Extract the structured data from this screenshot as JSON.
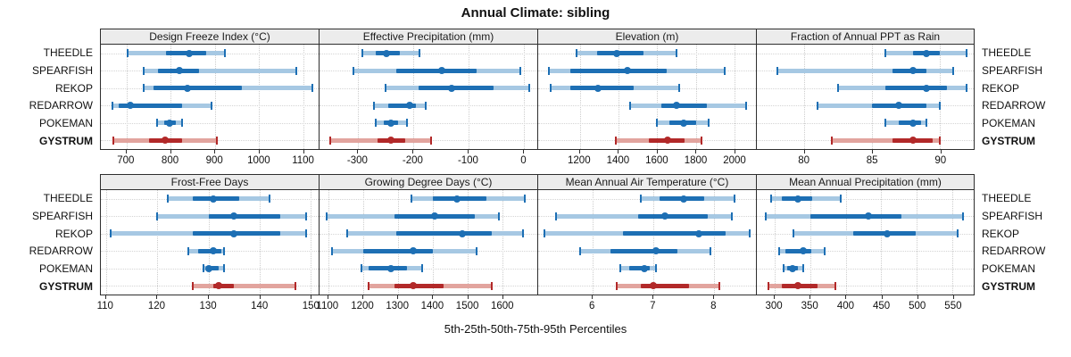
{
  "title": "Annual Climate: sibling",
  "caption": "5th-25th-50th-75th-95th Percentiles",
  "colors": {
    "series_blue": "#1d6fb4",
    "series_blue_light": "#a6c8e3",
    "highlight_red": "#b22929",
    "highlight_red_light": "#e2a49e",
    "strip_bg": "#ececec",
    "panel_border": "#2e2e2e",
    "gridline": "#cdcdcd"
  },
  "chart_data": {
    "type": "percentile-intervals",
    "percentile_levels": [
      5,
      25,
      50,
      75,
      95
    ],
    "legend_note": "rows repeated on left and right axes; GYSTRUM highlighted",
    "rows": [
      {
        "name": "THEEDLE",
        "highlight": false
      },
      {
        "name": "SPEARFISH",
        "highlight": false
      },
      {
        "name": "REKOP",
        "highlight": false
      },
      {
        "name": "REDARROW",
        "highlight": false
      },
      {
        "name": "POKEMAN",
        "highlight": false
      },
      {
        "name": "GYSTRUM",
        "highlight": true
      }
    ],
    "panels": [
      {
        "title": "Design Freeze Index (°C)",
        "xlim": [
          642,
          1135
        ],
        "ticks": [
          700,
          800,
          900,
          1000,
          1100
        ],
        "series": [
          [
            703,
            790,
            843,
            880,
            923
          ],
          [
            738,
            772,
            820,
            865,
            1085
          ],
          [
            738,
            762,
            838,
            962,
            1120
          ],
          [
            668,
            682,
            708,
            825,
            893
          ],
          [
            770,
            785,
            797,
            812,
            825
          ],
          [
            670,
            752,
            787,
            825,
            905
          ]
        ]
      },
      {
        "title": "Effective Precipitation (mm)",
        "xlim": [
          -370,
          25
        ],
        "ticks": [
          -300,
          -200,
          -100,
          0
        ],
        "series": [
          [
            -292,
            -268,
            -248,
            -225,
            -188
          ],
          [
            -308,
            -230,
            -148,
            -85,
            -5
          ],
          [
            -250,
            -190,
            -130,
            -55,
            10
          ],
          [
            -272,
            -245,
            -207,
            -195,
            -178
          ],
          [
            -268,
            -253,
            -240,
            -228,
            -212
          ],
          [
            -350,
            -265,
            -240,
            -215,
            -168
          ]
        ]
      },
      {
        "title": "Elevation (m)",
        "xlim": [
          985,
          2110
        ],
        "ticks": [
          1200,
          1400,
          1600,
          1800,
          2000
        ],
        "series": [
          [
            1185,
            1290,
            1390,
            1530,
            1700
          ],
          [
            1040,
            1150,
            1445,
            1650,
            1950
          ],
          [
            1050,
            1150,
            1295,
            1480,
            1715
          ],
          [
            1460,
            1620,
            1700,
            1855,
            2060
          ],
          [
            1600,
            1665,
            1735,
            1800,
            1865
          ],
          [
            1385,
            1555,
            1655,
            1740,
            1830
          ]
        ]
      },
      {
        "title": "Fraction of Annual PPT as Rain",
        "xlim": [
          76.5,
          92.5
        ],
        "ticks": [
          80,
          85,
          90
        ],
        "series": [
          [
            86,
            88,
            89,
            90,
            92
          ],
          [
            78,
            86.5,
            88,
            89,
            91
          ],
          [
            82.5,
            86,
            89,
            90.5,
            92
          ],
          [
            81,
            85,
            87,
            89,
            90
          ],
          [
            86,
            87,
            88,
            88.6,
            89
          ],
          [
            82,
            86.5,
            88,
            89.5,
            90
          ]
        ]
      },
      {
        "title": "Frost-Free Days",
        "xlim": [
          109,
          151.5
        ],
        "ticks": [
          110,
          120,
          130,
          140,
          150
        ],
        "series": [
          [
            122,
            127,
            131,
            136,
            142
          ],
          [
            120,
            130,
            135,
            144,
            149
          ],
          [
            111,
            127,
            135,
            144,
            149
          ],
          [
            126,
            128,
            131,
            132.5,
            133
          ],
          [
            129,
            129.5,
            130,
            132,
            133
          ],
          [
            127,
            131,
            132,
            135,
            147
          ]
        ]
      },
      {
        "title": "Growing Degree Days (°C)",
        "xlim": [
          1075,
          1700
        ],
        "ticks": [
          1100,
          1200,
          1300,
          1400,
          1500,
          1600
        ],
        "series": [
          [
            1340,
            1400,
            1470,
            1555,
            1665
          ],
          [
            1095,
            1290,
            1405,
            1520,
            1590
          ],
          [
            1155,
            1295,
            1485,
            1570,
            1660
          ],
          [
            1110,
            1200,
            1345,
            1400,
            1525
          ],
          [
            1195,
            1215,
            1280,
            1325,
            1370
          ],
          [
            1215,
            1290,
            1345,
            1430,
            1570
          ]
        ]
      },
      {
        "title": "Mean Annual Air Temperature (°C)",
        "xlim": [
          5.1,
          8.7
        ],
        "ticks": [
          6,
          7,
          8
        ],
        "series": [
          [
            6.8,
            7.1,
            7.5,
            7.85,
            8.35
          ],
          [
            5.4,
            6.75,
            7.2,
            7.9,
            8.3
          ],
          [
            5.2,
            6.5,
            7.75,
            8.2,
            8.6
          ],
          [
            5.8,
            6.3,
            7.05,
            7.4,
            7.95
          ],
          [
            6.45,
            6.6,
            6.85,
            6.95,
            7.05
          ],
          [
            6.4,
            6.8,
            7.0,
            7.6,
            8.1
          ]
        ]
      },
      {
        "title": "Mean Annual Precipitation (mm)",
        "xlim": [
          275,
          580
        ],
        "ticks": [
          300,
          350,
          400,
          450,
          500,
          550
        ],
        "series": [
          [
            295,
            310,
            333,
            353,
            393
          ],
          [
            288,
            350,
            432,
            478,
            565
          ],
          [
            327,
            410,
            458,
            498,
            557
          ],
          [
            307,
            315,
            340,
            352,
            371
          ],
          [
            313,
            318,
            325,
            333,
            340
          ],
          [
            291,
            310,
            333,
            360,
            385
          ]
        ]
      }
    ]
  }
}
